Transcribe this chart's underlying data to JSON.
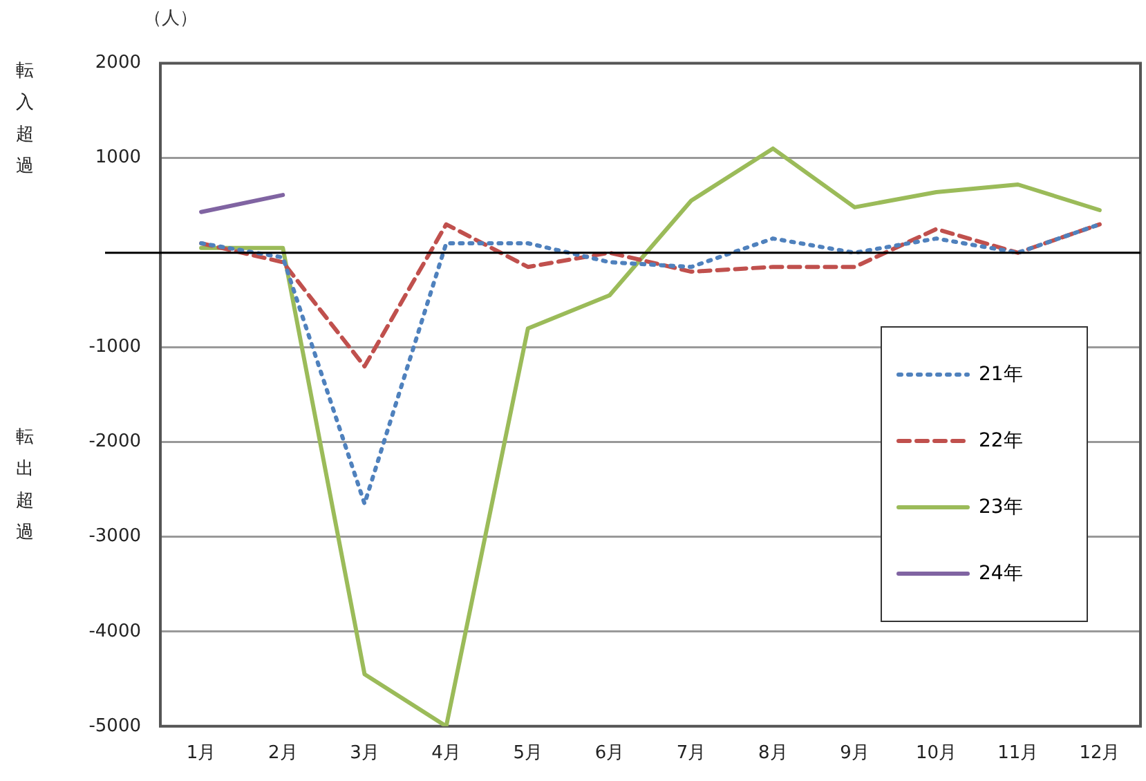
{
  "chart_data": {
    "type": "line",
    "ylabel": "（人）",
    "annotations": [
      "転入超過",
      "転出超過"
    ],
    "categories": [
      "1月",
      "2月",
      "3月",
      "4月",
      "5月",
      "6月",
      "7月",
      "8月",
      "9月",
      "10月",
      "11月",
      "12月"
    ],
    "series": [
      {
        "name": "21年",
        "color": "#4f81bd",
        "line_style": "dotted",
        "values": [
          100,
          -50,
          -2650,
          100,
          100,
          -100,
          -150,
          150,
          0,
          150,
          0,
          300
        ]
      },
      {
        "name": "22年",
        "color": "#c0504d",
        "line_style": "dashed",
        "values": [
          100,
          -100,
          -1200,
          300,
          -150,
          0,
          -200,
          -150,
          -150,
          250,
          0,
          300
        ]
      },
      {
        "name": "23年",
        "color": "#9bbb59",
        "line_style": "solid",
        "values": [
          50,
          50,
          -4450,
          -5000,
          -800,
          -450,
          550,
          1100,
          480,
          640,
          720,
          450
        ]
      },
      {
        "name": "24年",
        "color": "#8064a2",
        "line_style": "solid",
        "values": [
          430,
          610,
          null,
          null,
          null,
          null,
          null,
          null,
          null,
          null,
          null,
          null
        ]
      }
    ],
    "ylim": [
      -5000,
      2000
    ],
    "yticks": [
      -5000,
      -4000,
      -3000,
      -2000,
      -1000,
      {
        "value": 0,
        "label": null
      },
      1000,
      2000
    ],
    "grid": "y",
    "legend": "right",
    "marker": "none"
  }
}
